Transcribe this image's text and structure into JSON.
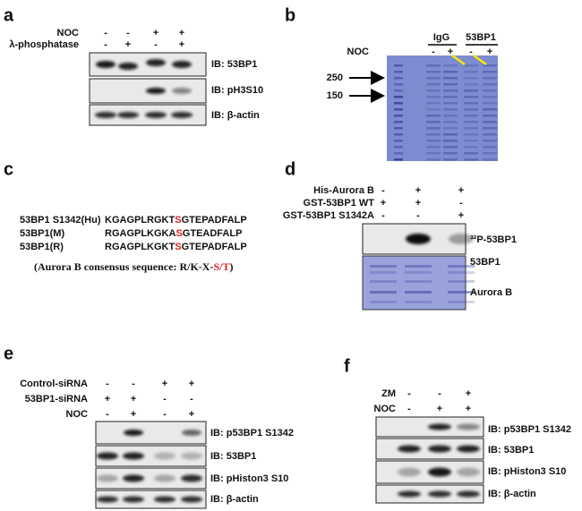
{
  "panels": {
    "a": {
      "label": "a",
      "rows": [
        {
          "name": "NOC",
          "signs": [
            "-",
            "-",
            "+",
            "+"
          ]
        },
        {
          "name": "λ-phosphatase",
          "signs": [
            "-",
            "+",
            "-",
            "+"
          ]
        }
      ],
      "blots": [
        "IB: 53BP1",
        "IB: pH3S10",
        "IB: β-actin"
      ]
    },
    "b": {
      "label": "b",
      "groups": [
        "IgG",
        "53BP1"
      ],
      "rows": [
        {
          "name": "NOC",
          "signs": [
            "-",
            "+",
            "-",
            "+"
          ]
        }
      ],
      "markers": [
        "250",
        "150"
      ]
    },
    "c": {
      "label": "c",
      "sequences": [
        {
          "name": "53BP1 S1342(Hu)",
          "pre": "KGAGPLRGKT",
          "site": "S",
          "post": "GTEPADFALP"
        },
        {
          "name": "53BP1(M)",
          "pre": "RGAGPLKGKA",
          "site": "S",
          "post": "GTEADFALP"
        },
        {
          "name": "53BP1(R)",
          "pre": "RGAGPLKGKT",
          "site": "S",
          "post": "GTEPADFALP"
        }
      ],
      "consensus": {
        "pre": "(Aurora B consensus sequence:  R/K-X-",
        "site": "S/T",
        "post": ")"
      }
    },
    "d": {
      "label": "d",
      "rows": [
        {
          "name": "His-Aurora B",
          "signs": [
            "-",
            "+",
            "+"
          ]
        },
        {
          "name": "GST-53BP1 WT",
          "signs": [
            "+",
            "+",
            "-"
          ]
        },
        {
          "name": "GST-53BP1 S1342A",
          "signs": [
            "-",
            "-",
            "+"
          ]
        }
      ],
      "blots": [
        "³²P-53BP1",
        "53BP1",
        "Aurora B"
      ]
    },
    "e": {
      "label": "e",
      "rows": [
        {
          "name": "Control-siRNA",
          "signs": [
            "-",
            "-",
            "+",
            "+"
          ]
        },
        {
          "name": "53BP1-siRNA",
          "signs": [
            "+",
            "+",
            "-",
            "-"
          ]
        },
        {
          "name": "NOC",
          "signs": [
            "-",
            "+",
            "-",
            "+"
          ]
        }
      ],
      "blots": [
        "IB: p53BP1 S1342",
        "IB: 53BP1",
        "IB: pHiston3 S10",
        "IB: β-actin"
      ]
    },
    "f": {
      "label": "f",
      "rows": [
        {
          "name": "ZM",
          "signs": [
            "-",
            "-",
            "+"
          ]
        },
        {
          "name": "NOC",
          "signs": [
            "-",
            "+",
            "+"
          ]
        }
      ],
      "blots": [
        "IB: p53BP1 S1342",
        "IB: 53BP1",
        "IB: pHiston3 S10",
        "IB: β-actin"
      ]
    }
  }
}
